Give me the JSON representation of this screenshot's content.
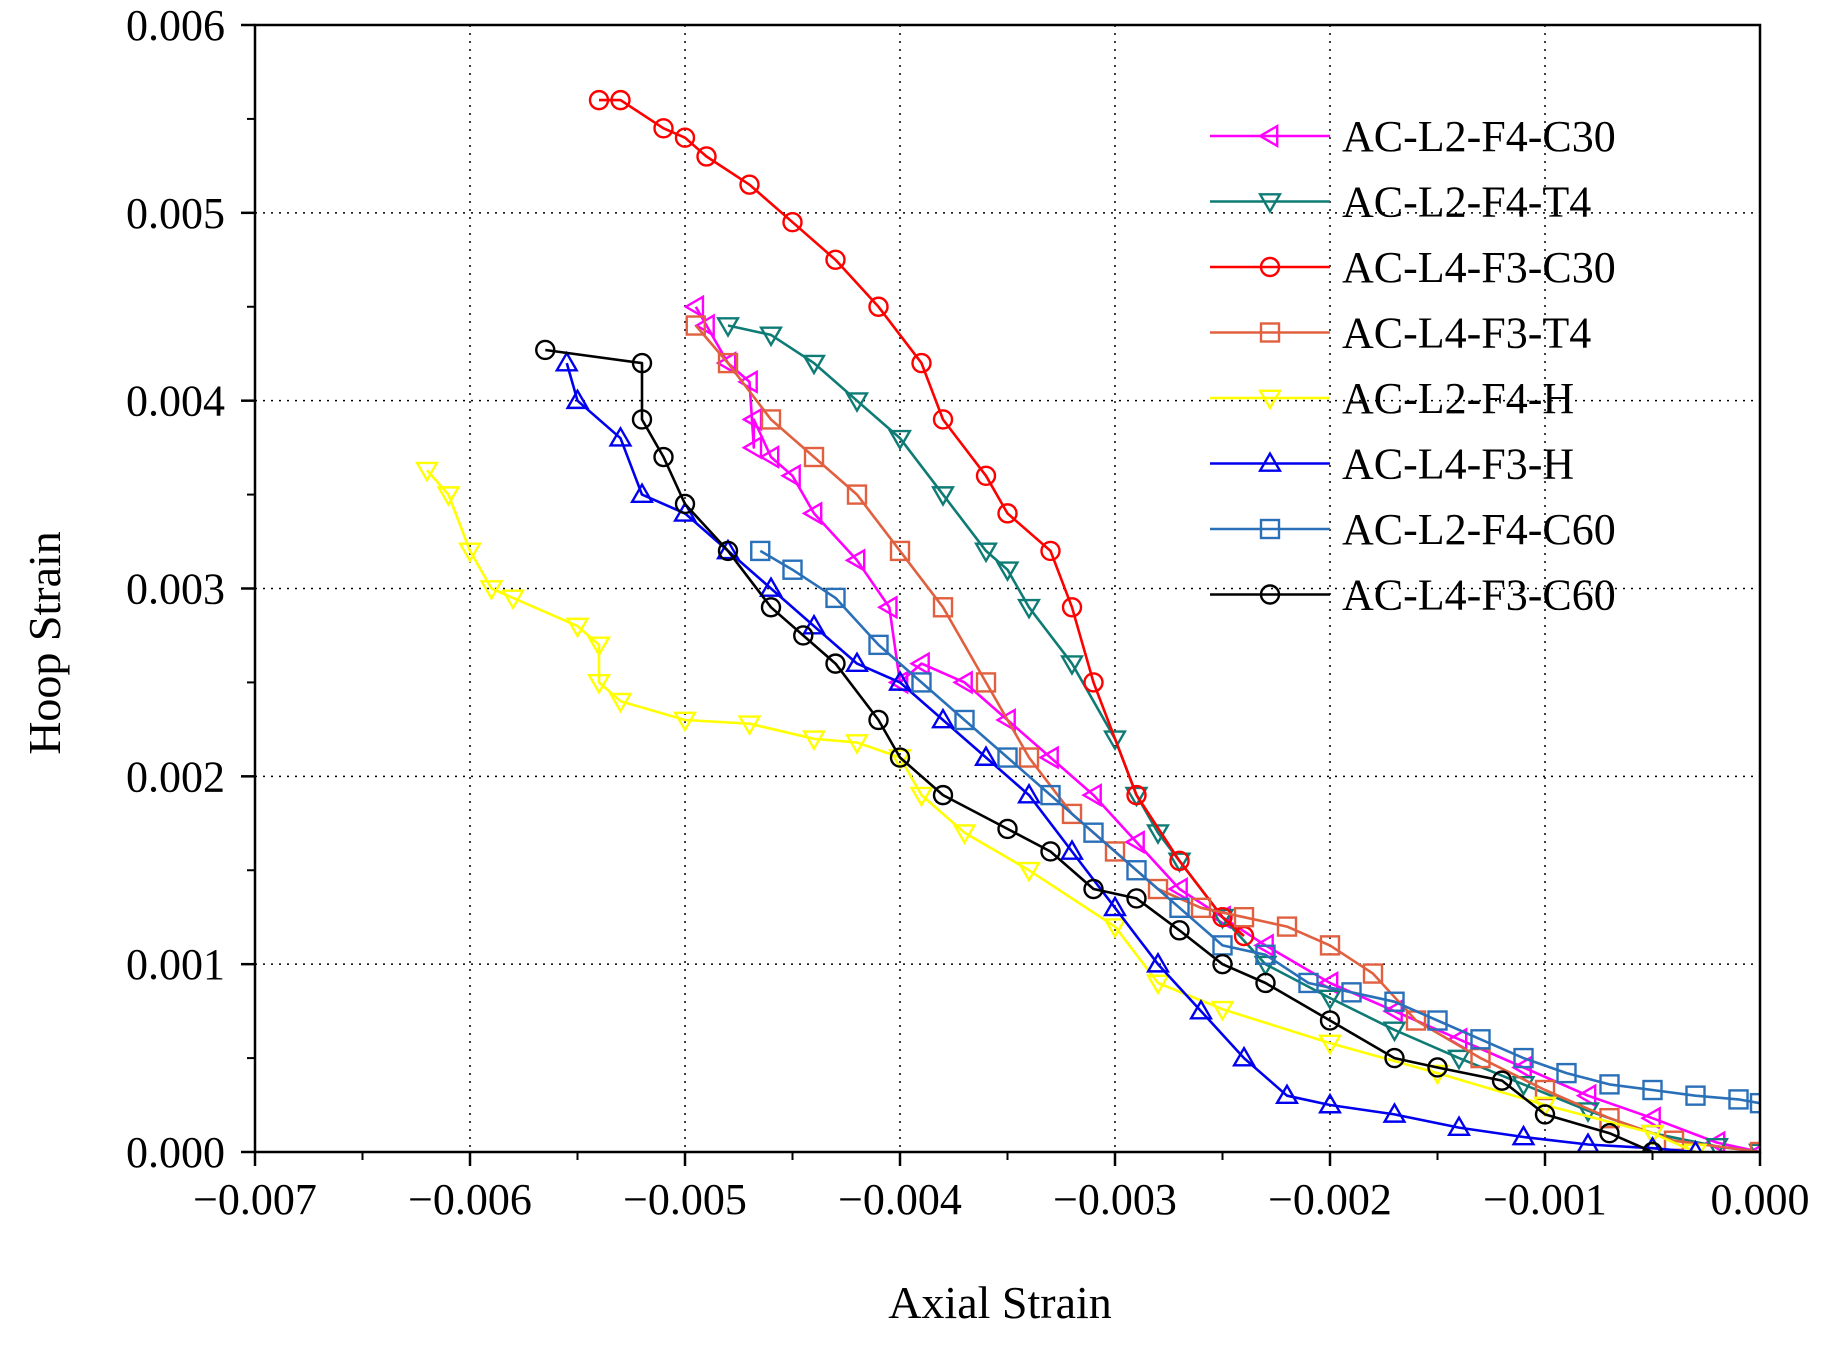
{
  "chart_data": {
    "type": "line",
    "title": "",
    "xlabel": "Axial Strain",
    "ylabel": "Hoop Strain",
    "xlim": [
      -0.007,
      0.0
    ],
    "ylim": [
      0.0,
      0.006
    ],
    "x_ticks": [
      -0.007,
      -0.006,
      -0.005,
      -0.004,
      -0.003,
      -0.002,
      -0.001,
      0.0
    ],
    "x_tick_labels": [
      "−0.007",
      "−0.006",
      "−0.005",
      "−0.004",
      "−0.003",
      "−0.002",
      "−0.001",
      "0.000"
    ],
    "y_ticks": [
      0.0,
      0.001,
      0.002,
      0.003,
      0.004,
      0.005,
      0.006
    ],
    "y_tick_labels": [
      "0.000",
      "0.001",
      "0.002",
      "0.003",
      "0.004",
      "0.005",
      "0.006"
    ],
    "grid": true,
    "legend_position": "top-right",
    "series": [
      {
        "name": "AC-L2-F4-C30",
        "color": "#ff00ff",
        "marker": "triangle-left",
        "points": [
          [
            -0.00495,
            0.0045
          ],
          [
            -0.0049,
            0.0044
          ],
          [
            -0.0048,
            0.0042
          ],
          [
            -0.0047,
            0.0041
          ],
          [
            -0.00468,
            0.00375
          ],
          [
            -0.00468,
            0.0039
          ],
          [
            -0.0046,
            0.0037
          ],
          [
            -0.0045,
            0.0036
          ],
          [
            -0.0044,
            0.0034
          ],
          [
            -0.0042,
            0.00315
          ],
          [
            -0.00405,
            0.0029
          ],
          [
            -0.004,
            0.0025
          ],
          [
            -0.0039,
            0.0026
          ],
          [
            -0.0037,
            0.0025
          ],
          [
            -0.0035,
            0.0023
          ],
          [
            -0.0033,
            0.0021
          ],
          [
            -0.0031,
            0.0019
          ],
          [
            -0.0029,
            0.00165
          ],
          [
            -0.0027,
            0.0014
          ],
          [
            -0.0025,
            0.00125
          ],
          [
            -0.0023,
            0.0011
          ],
          [
            -0.002,
            0.0009
          ],
          [
            -0.0017,
            0.00075
          ],
          [
            -0.0014,
            0.0006
          ],
          [
            -0.0011,
            0.00045
          ],
          [
            -0.0008,
            0.0003
          ],
          [
            -0.0005,
            0.00018
          ],
          [
            -0.0002,
            5e-05
          ],
          [
            0.0,
            0.0
          ]
        ]
      },
      {
        "name": "AC-L2-F4-T4",
        "color": "#0e7b75",
        "marker": "triangle-down",
        "points": [
          [
            -0.0048,
            0.0044
          ],
          [
            -0.0046,
            0.00435
          ],
          [
            -0.0044,
            0.0042
          ],
          [
            -0.0042,
            0.004
          ],
          [
            -0.004,
            0.0038
          ],
          [
            -0.0038,
            0.0035
          ],
          [
            -0.0036,
            0.0032
          ],
          [
            -0.0035,
            0.0031
          ],
          [
            -0.0034,
            0.0029
          ],
          [
            -0.0032,
            0.0026
          ],
          [
            -0.003,
            0.0022
          ],
          [
            -0.0029,
            0.0019
          ],
          [
            -0.0028,
            0.0017
          ],
          [
            -0.0027,
            0.00155
          ],
          [
            -0.0025,
            0.00125
          ],
          [
            -0.0023,
            0.001
          ],
          [
            -0.002,
            0.00082
          ],
          [
            -0.0017,
            0.00065
          ],
          [
            -0.0014,
            0.0005
          ],
          [
            -0.0011,
            0.00036
          ],
          [
            -0.0008,
            0.00022
          ],
          [
            -0.0005,
            0.0001
          ],
          [
            -0.0002,
            3e-05
          ],
          [
            0.0,
            0.0
          ]
        ]
      },
      {
        "name": "AC-L4-F3-C30",
        "color": "#ff0000",
        "marker": "circle",
        "points": [
          [
            -0.0054,
            0.0056
          ],
          [
            -0.0053,
            0.0056
          ],
          [
            -0.0051,
            0.00545
          ],
          [
            -0.005,
            0.0054
          ],
          [
            -0.0049,
            0.0053
          ],
          [
            -0.0047,
            0.00515
          ],
          [
            -0.0045,
            0.00495
          ],
          [
            -0.0043,
            0.00475
          ],
          [
            -0.0041,
            0.0045
          ],
          [
            -0.0039,
            0.0042
          ],
          [
            -0.0038,
            0.0039
          ],
          [
            -0.0036,
            0.0036
          ],
          [
            -0.0035,
            0.0034
          ],
          [
            -0.0033,
            0.0032
          ],
          [
            -0.0032,
            0.0029
          ],
          [
            -0.0031,
            0.0025
          ],
          [
            -0.0029,
            0.0019
          ],
          [
            -0.0027,
            0.00155
          ],
          [
            -0.0025,
            0.00125
          ],
          [
            -0.0024,
            0.00115
          ]
        ]
      },
      {
        "name": "AC-L4-F3-T4",
        "color": "#e06040",
        "marker": "square",
        "points": [
          [
            -0.00495,
            0.0044
          ],
          [
            -0.0048,
            0.0042
          ],
          [
            -0.0046,
            0.0039
          ],
          [
            -0.0044,
            0.0037
          ],
          [
            -0.0042,
            0.0035
          ],
          [
            -0.004,
            0.0032
          ],
          [
            -0.0038,
            0.0029
          ],
          [
            -0.0036,
            0.0025
          ],
          [
            -0.0034,
            0.0021
          ],
          [
            -0.0032,
            0.0018
          ],
          [
            -0.003,
            0.0016
          ],
          [
            -0.0028,
            0.0014
          ],
          [
            -0.0026,
            0.0013
          ],
          [
            -0.0024,
            0.00125
          ],
          [
            -0.0022,
            0.0012
          ],
          [
            -0.002,
            0.0011
          ],
          [
            -0.0018,
            0.00095
          ],
          [
            -0.0016,
            0.0007
          ],
          [
            -0.0013,
            0.0005
          ],
          [
            -0.001,
            0.00033
          ],
          [
            -0.0007,
            0.00018
          ],
          [
            -0.0004,
            6e-05
          ],
          [
            0.0,
            0.0
          ]
        ]
      },
      {
        "name": "AC-L2-F4-H",
        "color": "#ffff00",
        "marker": "triangle-down",
        "points": [
          [
            -0.0062,
            0.00363
          ],
          [
            -0.0061,
            0.0035
          ],
          [
            -0.006,
            0.0032
          ],
          [
            -0.0059,
            0.003
          ],
          [
            -0.0058,
            0.00295
          ],
          [
            -0.0055,
            0.0028
          ],
          [
            -0.0054,
            0.0027
          ],
          [
            -0.0054,
            0.0025
          ],
          [
            -0.0053,
            0.0024
          ],
          [
            -0.005,
            0.0023
          ],
          [
            -0.0047,
            0.00228
          ],
          [
            -0.0044,
            0.0022
          ],
          [
            -0.0042,
            0.00218
          ],
          [
            -0.004,
            0.0021
          ],
          [
            -0.0039,
            0.0019
          ],
          [
            -0.0037,
            0.0017
          ],
          [
            -0.0034,
            0.0015
          ],
          [
            -0.003,
            0.0012
          ],
          [
            -0.0028,
            0.0009
          ],
          [
            -0.0025,
            0.00076
          ],
          [
            -0.002,
            0.00058
          ],
          [
            -0.0015,
            0.00042
          ],
          [
            -0.001,
            0.00025
          ],
          [
            -0.0005,
            0.0001
          ],
          [
            -0.0003,
            0.0
          ]
        ]
      },
      {
        "name": "AC-L4-F3-H",
        "color": "#0000ee",
        "marker": "triangle-up",
        "points": [
          [
            -0.00555,
            0.0042
          ],
          [
            -0.0055,
            0.004
          ],
          [
            -0.0053,
            0.0038
          ],
          [
            -0.0052,
            0.0035
          ],
          [
            -0.005,
            0.0034
          ],
          [
            -0.0048,
            0.0032
          ],
          [
            -0.0046,
            0.003
          ],
          [
            -0.0044,
            0.0028
          ],
          [
            -0.0042,
            0.0026
          ],
          [
            -0.004,
            0.0025
          ],
          [
            -0.0038,
            0.0023
          ],
          [
            -0.0036,
            0.0021
          ],
          [
            -0.0034,
            0.0019
          ],
          [
            -0.0032,
            0.0016
          ],
          [
            -0.003,
            0.0013
          ],
          [
            -0.0028,
            0.001
          ],
          [
            -0.0026,
            0.00075
          ],
          [
            -0.0024,
            0.0005
          ],
          [
            -0.0022,
            0.0003
          ],
          [
            -0.002,
            0.00025
          ],
          [
            -0.0017,
            0.0002
          ],
          [
            -0.0014,
            0.00013
          ],
          [
            -0.0011,
            8e-05
          ],
          [
            -0.0008,
            4e-05
          ],
          [
            -0.0005,
            2e-05
          ],
          [
            -0.0003,
            0.0
          ]
        ]
      },
      {
        "name": "AC-L2-F4-C60",
        "color": "#2a70b8",
        "marker": "square",
        "points": [
          [
            -0.00465,
            0.0032
          ],
          [
            -0.0045,
            0.0031
          ],
          [
            -0.0043,
            0.00295
          ],
          [
            -0.0041,
            0.0027
          ],
          [
            -0.0039,
            0.0025
          ],
          [
            -0.0037,
            0.0023
          ],
          [
            -0.0035,
            0.0021
          ],
          [
            -0.0033,
            0.0019
          ],
          [
            -0.0031,
            0.0017
          ],
          [
            -0.0029,
            0.0015
          ],
          [
            -0.0027,
            0.0013
          ],
          [
            -0.0025,
            0.0011
          ],
          [
            -0.0023,
            0.00105
          ],
          [
            -0.0021,
            0.0009
          ],
          [
            -0.0019,
            0.00085
          ],
          [
            -0.0017,
            0.0008
          ],
          [
            -0.0015,
            0.0007
          ],
          [
            -0.0013,
            0.0006
          ],
          [
            -0.0011,
            0.0005
          ],
          [
            -0.0009,
            0.00042
          ],
          [
            -0.0007,
            0.00036
          ],
          [
            -0.0005,
            0.00033
          ],
          [
            -0.0003,
            0.0003
          ],
          [
            -0.0001,
            0.00028
          ],
          [
            0.0,
            0.00026
          ]
        ]
      },
      {
        "name": "AC-L4-F3-C60",
        "color": "#000000",
        "marker": "circle",
        "points": [
          [
            -0.00565,
            0.00427
          ],
          [
            -0.0052,
            0.0042
          ],
          [
            -0.0052,
            0.0039
          ],
          [
            -0.0051,
            0.0037
          ],
          [
            -0.005,
            0.00345
          ],
          [
            -0.0048,
            0.0032
          ],
          [
            -0.0046,
            0.0029
          ],
          [
            -0.00445,
            0.00275
          ],
          [
            -0.0043,
            0.0026
          ],
          [
            -0.0041,
            0.0023
          ],
          [
            -0.004,
            0.0021
          ],
          [
            -0.0038,
            0.0019
          ],
          [
            -0.0035,
            0.00172
          ],
          [
            -0.0033,
            0.0016
          ],
          [
            -0.0031,
            0.0014
          ],
          [
            -0.0029,
            0.00135
          ],
          [
            -0.0027,
            0.00118
          ],
          [
            -0.0025,
            0.001
          ],
          [
            -0.0023,
            0.0009
          ],
          [
            -0.002,
            0.0007
          ],
          [
            -0.0017,
            0.0005
          ],
          [
            -0.0015,
            0.00045
          ],
          [
            -0.0012,
            0.00038
          ],
          [
            -0.001,
            0.0002
          ],
          [
            -0.0007,
            0.0001
          ],
          [
            -0.0005,
            0.0
          ]
        ]
      }
    ]
  }
}
